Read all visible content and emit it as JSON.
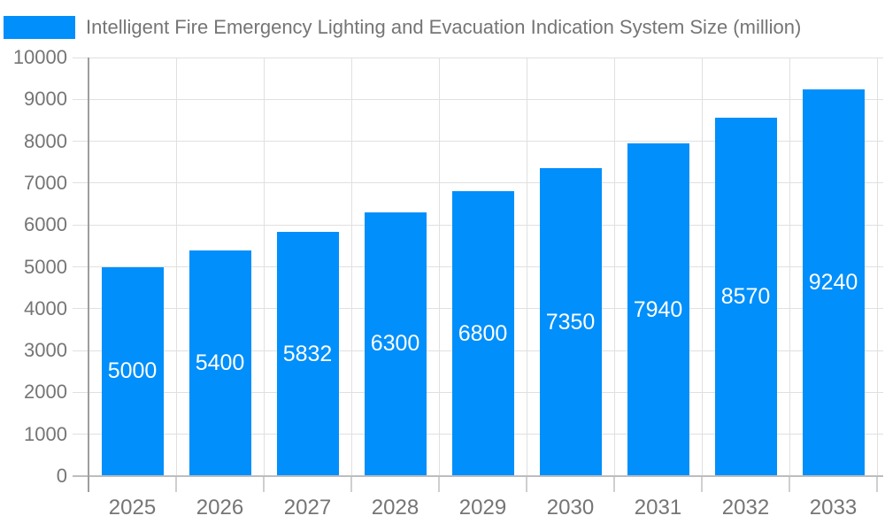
{
  "legend": {
    "series_label": "Intelligent Fire Emergency Lighting and Evacuation Indication System Size (million)",
    "swatch_color": "#008FFB"
  },
  "chart_data": {
    "type": "bar",
    "title": "Intelligent Fire Emergency Lighting and Evacuation Indication System Size (million)",
    "categories": [
      "2025",
      "2026",
      "2027",
      "2028",
      "2029",
      "2030",
      "2031",
      "2032",
      "2033"
    ],
    "values": [
      5000,
      5400,
      5832,
      6300,
      6800,
      7350,
      7940,
      8570,
      9240
    ],
    "data_labels": [
      "5000",
      "5400",
      "5832",
      "6300",
      "6800",
      "7350",
      "7940",
      "8570",
      "9240"
    ],
    "xlabel": "",
    "ylabel": "",
    "ylim": [
      0,
      10000
    ],
    "ytick_step": 1000,
    "yticks": [
      0,
      1000,
      2000,
      3000,
      4000,
      5000,
      6000,
      7000,
      8000,
      9000,
      10000
    ],
    "grid": true,
    "legend_position": "top-left",
    "colors": {
      "bar": "#008FFB",
      "data_label": "#FFFFFF",
      "axis_text": "#757575",
      "grid_line": "#E0E0E0",
      "axis_line": "#9E9E9E",
      "baseline": "#BDBDBD",
      "tick": "#CFCFCF",
      "background": "#FFFFFF"
    }
  }
}
